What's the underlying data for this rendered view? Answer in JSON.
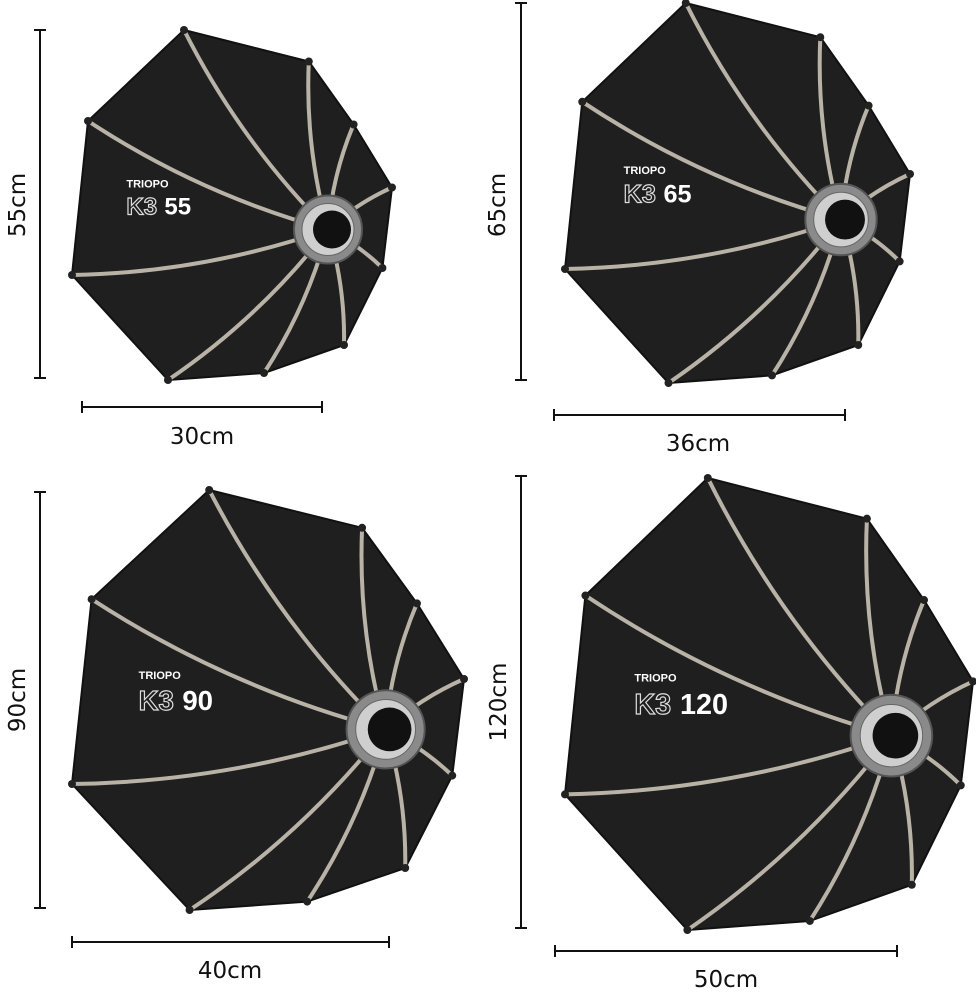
{
  "colors": {
    "fabric": "#1f1f1f",
    "rib": "#b9b2a6",
    "mount": "#8a8a8a",
    "dimension_line": "#111111"
  },
  "products": [
    {
      "brand": "TRIOPO",
      "series": "K3",
      "size": "55",
      "height_label": "55cm",
      "depth_label": "30cm"
    },
    {
      "brand": "TRIOPO",
      "series": "K3",
      "size": "65",
      "height_label": "65cm",
      "depth_label": "36cm"
    },
    {
      "brand": "TRIOPO",
      "series": "K3",
      "size": "90",
      "height_label": "90cm",
      "depth_label": "40cm"
    },
    {
      "brand": "TRIOPO",
      "series": "K3",
      "size": "120",
      "height_label": "120cm",
      "depth_label": "50cm"
    }
  ]
}
